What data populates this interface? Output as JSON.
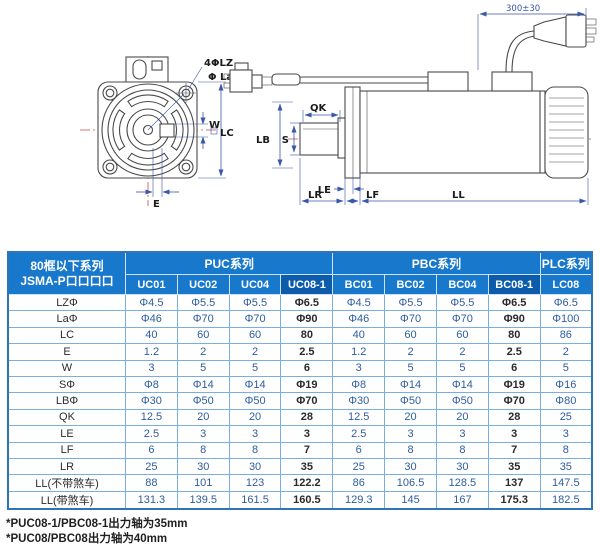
{
  "diagram": {
    "front": {
      "hole_label": "4ΦLZ",
      "bolt_circle_label": "Φ La",
      "w_label": "W",
      "lc_label": "LC",
      "e_label": "E"
    },
    "side": {
      "qk_label": "QK",
      "lb_label": "LB",
      "s_label": "S",
      "le_label": "LE",
      "lr_label": "LR",
      "lf_label": "LF",
      "ll_label": "LL",
      "cable_length_label": "300±30"
    }
  },
  "table": {
    "corner_header": {
      "line1": "80框以下系列",
      "line2": "JSMA-P口口口口"
    },
    "groups": [
      {
        "label": "PUC系列",
        "span": 4
      },
      {
        "label": "PBC系列",
        "span": 4
      },
      {
        "label": "PLC系列",
        "span": 1
      }
    ],
    "columns": [
      "UC01",
      "UC02",
      "UC04",
      "UC08-1",
      "BC01",
      "BC02",
      "BC04",
      "BC08-1",
      "LC08"
    ],
    "highlight_column_indexes": [
      3,
      7
    ],
    "rows": [
      {
        "label": "LZΦ",
        "values": [
          "Φ4.5",
          "Φ5.5",
          "Φ5.5",
          "Φ6.5",
          "Φ4.5",
          "Φ5.5",
          "Φ5.5",
          "Φ6.5",
          "Φ6.5"
        ]
      },
      {
        "label": "LaΦ",
        "values": [
          "Φ46",
          "Φ70",
          "Φ70",
          "Φ90",
          "Φ46",
          "Φ70",
          "Φ70",
          "Φ90",
          "Φ100"
        ]
      },
      {
        "label": "LC",
        "values": [
          "40",
          "60",
          "60",
          "80",
          "40",
          "60",
          "60",
          "80",
          "86"
        ]
      },
      {
        "label": "E",
        "values": [
          "1.2",
          "2",
          "2",
          "2.5",
          "1.2",
          "2",
          "2",
          "2.5",
          "2"
        ]
      },
      {
        "label": "W",
        "values": [
          "3",
          "5",
          "5",
          "6",
          "3",
          "5",
          "5",
          "6",
          "5"
        ]
      },
      {
        "label": "SΦ",
        "values": [
          "Φ8",
          "Φ14",
          "Φ14",
          "Φ19",
          "Φ8",
          "Φ14",
          "Φ14",
          "Φ19",
          "Φ16"
        ]
      },
      {
        "label": "LBΦ",
        "values": [
          "Φ30",
          "Φ50",
          "Φ50",
          "Φ70",
          "Φ30",
          "Φ50",
          "Φ50",
          "Φ70",
          "Φ80"
        ]
      },
      {
        "label": "QK",
        "values": [
          "12.5",
          "20",
          "20",
          "28",
          "12.5",
          "20",
          "20",
          "28",
          "25"
        ]
      },
      {
        "label": "LE",
        "values": [
          "2.5",
          "3",
          "3",
          "3",
          "2.5",
          "3",
          "3",
          "3",
          "3"
        ]
      },
      {
        "label": "LF",
        "values": [
          "6",
          "8",
          "8",
          "7",
          "6",
          "8",
          "8",
          "7",
          "8"
        ]
      },
      {
        "label": "LR",
        "values": [
          "25",
          "30",
          "30",
          "35",
          "25",
          "30",
          "30",
          "35",
          "35"
        ]
      },
      {
        "label": "LL(不带煞车)",
        "values": [
          "88",
          "101",
          "123",
          "122.2",
          "86",
          "106.5",
          "128.5",
          "137",
          "147.5"
        ]
      },
      {
        "label": "LL(带煞车)",
        "values": [
          "131.3",
          "139.5",
          "161.5",
          "160.5",
          "129.3",
          "145",
          "167",
          "175.3",
          "182.5"
        ]
      }
    ]
  },
  "notes": [
    "*PUC08-1/PBC08-1出力轴为35mm",
    "*PUC08/PBC08出力轴为40mm"
  ],
  "colors": {
    "header_bg": "#1878cc",
    "header_dark_bg": "#0d5cab",
    "outer_border": "#2e75b6",
    "grid_line": "#7aaede",
    "value_text": "#2e5d9f",
    "label_text": "#2b2b2b",
    "dimension_blue": "#3a57a8",
    "centerline_red": "#c0504d",
    "outline_gray": "#4a4a4a"
  }
}
